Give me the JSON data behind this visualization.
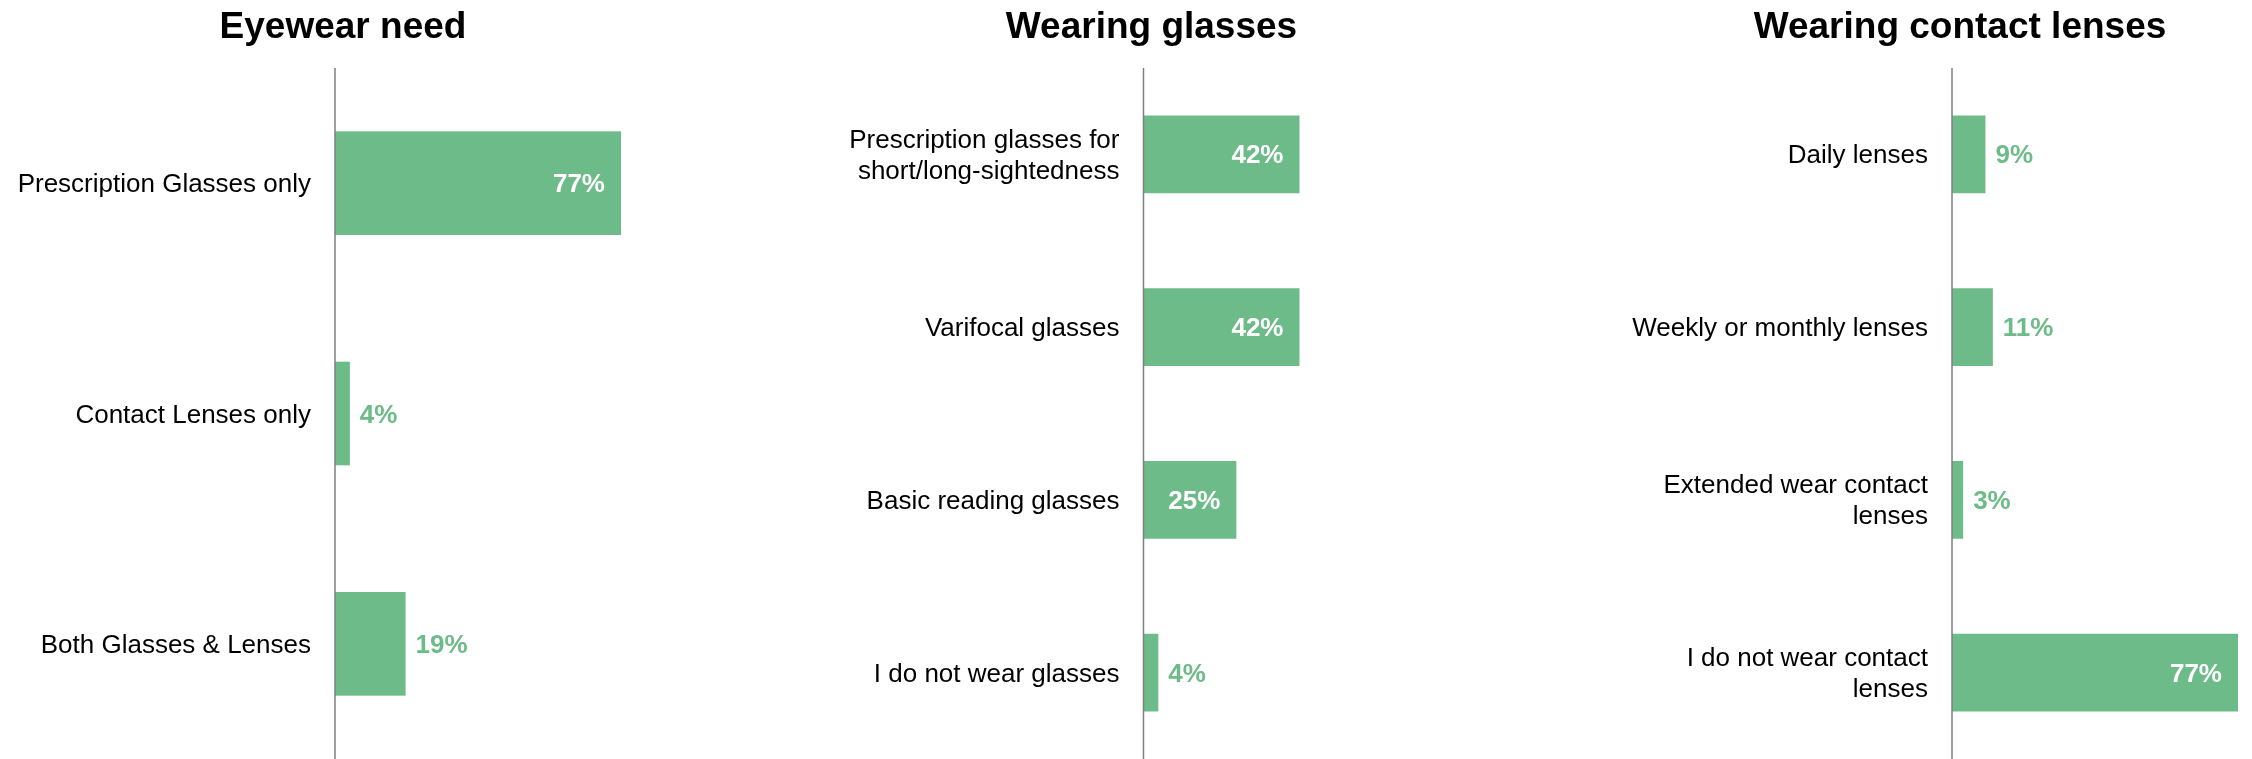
{
  "chart_data": [
    {
      "type": "bar",
      "orientation": "horizontal",
      "title": "Eyewear need",
      "categories": [
        "Prescription Glasses only",
        "Contact Lenses only",
        "Both Glasses & Lenses"
      ],
      "values": [
        77,
        4,
        19
      ],
      "value_labels": [
        "77%",
        "4%",
        "19%"
      ],
      "color": "#6dbb88",
      "tick_labels": "y"
    },
    {
      "type": "bar",
      "orientation": "horizontal",
      "title": "Wearing glasses",
      "categories": [
        "Prescription glasses for short/long-sightedness",
        "Varifocal glasses",
        "Basic reading glasses",
        "I do not wear glasses"
      ],
      "values": [
        42,
        42,
        25,
        4
      ],
      "value_labels": [
        "42%",
        "42%",
        "25%",
        "4%"
      ],
      "color": "#6dbb88",
      "tick_labels": "y"
    },
    {
      "type": "bar",
      "orientation": "horizontal",
      "title": "Wearing contact lenses",
      "categories": [
        "Daily lenses",
        "Weekly or monthly lenses",
        "Extended wear contact lenses",
        "I do not wear contact lenses"
      ],
      "values": [
        9,
        11,
        3,
        77
      ],
      "value_labels": [
        "9%",
        "11%",
        "3%",
        "77%"
      ],
      "color": "#6dbb88",
      "tick_labels": "y"
    }
  ]
}
